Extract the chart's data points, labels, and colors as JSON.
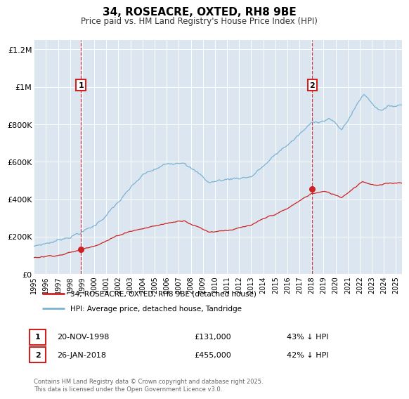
{
  "title": "34, ROSEACRE, OXTED, RH8 9BE",
  "subtitle": "Price paid vs. HM Land Registry's House Price Index (HPI)",
  "ylim": [
    0,
    1250000
  ],
  "xlim_start": 1995.0,
  "xlim_end": 2025.5,
  "background_color": "#ffffff",
  "plot_bg_color": "#dce6f0",
  "grid_color": "#ffffff",
  "hpi_color": "#7ab3d4",
  "price_color": "#cc2222",
  "sale1_x": 1998.89,
  "sale1_y": 131000,
  "sale2_x": 2018.07,
  "sale2_y": 455000,
  "sale1_label": "20-NOV-1998",
  "sale1_price": "£131,000",
  "sale1_hpi": "43% ↓ HPI",
  "sale2_label": "26-JAN-2018",
  "sale2_price": "£455,000",
  "sale2_hpi": "42% ↓ HPI",
  "legend1": "34, ROSEACRE, OXTED, RH8 9BE (detached house)",
  "legend2": "HPI: Average price, detached house, Tandridge",
  "footnote": "Contains HM Land Registry data © Crown copyright and database right 2025.\nThis data is licensed under the Open Government Licence v3.0.",
  "yticks": [
    0,
    200000,
    400000,
    600000,
    800000,
    1000000,
    1200000
  ],
  "ytick_labels": [
    "£0",
    "£200K",
    "£400K",
    "£600K",
    "£800K",
    "£1M",
    "£1.2M"
  ]
}
